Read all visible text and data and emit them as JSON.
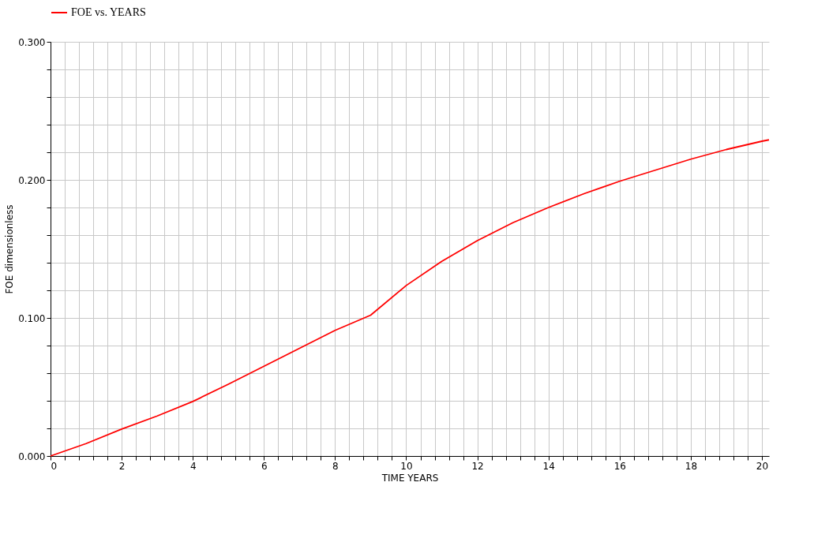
{
  "chart_data": {
    "type": "line",
    "xlabel": "TIME   YEARS",
    "ylabel": "FOE   dimensionless",
    "x": [
      0,
      1,
      2,
      3,
      4,
      5,
      6,
      7,
      8,
      9,
      10,
      11,
      12,
      13,
      14,
      15,
      16,
      17,
      18,
      19,
      20,
      20.2
    ],
    "series": [
      {
        "name": "FOE vs. YEARS",
        "color": "#ff0000",
        "values": [
          0,
          0.009,
          0.0195,
          0.029,
          0.0395,
          0.052,
          0.065,
          0.078,
          0.091,
          0.102,
          0.1235,
          0.141,
          0.156,
          0.169,
          0.18,
          0.19,
          0.199,
          0.207,
          0.215,
          0.222,
          0.228,
          0.229
        ]
      }
    ],
    "xlim": [
      0,
      20.2
    ],
    "ylim": [
      0,
      0.3
    ],
    "xticks": [
      0,
      {
        "value": 0.4,
        "label": null
      },
      {
        "value": 0.8,
        "label": null
      },
      {
        "value": 1.2,
        "label": null
      },
      {
        "value": 1.6,
        "label": null
      },
      2,
      {
        "value": 2.4,
        "label": null
      },
      {
        "value": 2.8,
        "label": null
      },
      {
        "value": 3.2,
        "label": null
      },
      {
        "value": 3.6,
        "label": null
      },
      4,
      {
        "value": 4.4,
        "label": null
      },
      {
        "value": 4.8,
        "label": null
      },
      {
        "value": 5.2,
        "label": null
      },
      {
        "value": 5.6,
        "label": null
      },
      6,
      {
        "value": 6.4,
        "label": null
      },
      {
        "value": 6.8,
        "label": null
      },
      {
        "value": 7.2,
        "label": null
      },
      {
        "value": 7.6,
        "label": null
      },
      8,
      {
        "value": 8.4,
        "label": null
      },
      {
        "value": 8.8,
        "label": null
      },
      {
        "value": 9.2,
        "label": null
      },
      {
        "value": 9.6,
        "label": null
      },
      10,
      {
        "value": 10.4,
        "label": null
      },
      {
        "value": 10.8,
        "label": null
      },
      {
        "value": 11.2,
        "label": null
      },
      {
        "value": 11.6,
        "label": null
      },
      12,
      {
        "value": 12.4,
        "label": null
      },
      {
        "value": 12.8,
        "label": null
      },
      {
        "value": 13.2,
        "label": null
      },
      {
        "value": 13.6,
        "label": null
      },
      14,
      {
        "value": 14.4,
        "label": null
      },
      {
        "value": 14.8,
        "label": null
      },
      {
        "value": 15.2,
        "label": null
      },
      {
        "value": 15.6,
        "label": null
      },
      16,
      {
        "value": 16.4,
        "label": null
      },
      {
        "value": 16.8,
        "label": null
      },
      {
        "value": 17.2,
        "label": null
      },
      {
        "value": 17.6,
        "label": null
      },
      18,
      {
        "value": 18.4,
        "label": null
      },
      {
        "value": 18.8,
        "label": null
      },
      {
        "value": 19.2,
        "label": null
      },
      {
        "value": 19.6,
        "label": null
      },
      20
    ],
    "yticks": [
      {
        "value": 0,
        "label": "0.000"
      },
      {
        "value": 0.02,
        "label": null
      },
      {
        "value": 0.04,
        "label": null
      },
      {
        "value": 0.06,
        "label": null
      },
      {
        "value": 0.08,
        "label": null
      },
      {
        "value": 0.1,
        "label": "0.100"
      },
      {
        "value": 0.12,
        "label": null
      },
      {
        "value": 0.14,
        "label": null
      },
      {
        "value": 0.16,
        "label": null
      },
      {
        "value": 0.18,
        "label": null
      },
      {
        "value": 0.2,
        "label": "0.200"
      },
      {
        "value": 0.22,
        "label": null
      },
      {
        "value": 0.24,
        "label": null
      },
      {
        "value": 0.26,
        "label": null
      },
      {
        "value": 0.28,
        "label": null
      },
      {
        "value": 0.3,
        "label": "0.300"
      }
    ],
    "grid": true,
    "legend": "top left",
    "marker": "none",
    "line_style": "solid"
  }
}
